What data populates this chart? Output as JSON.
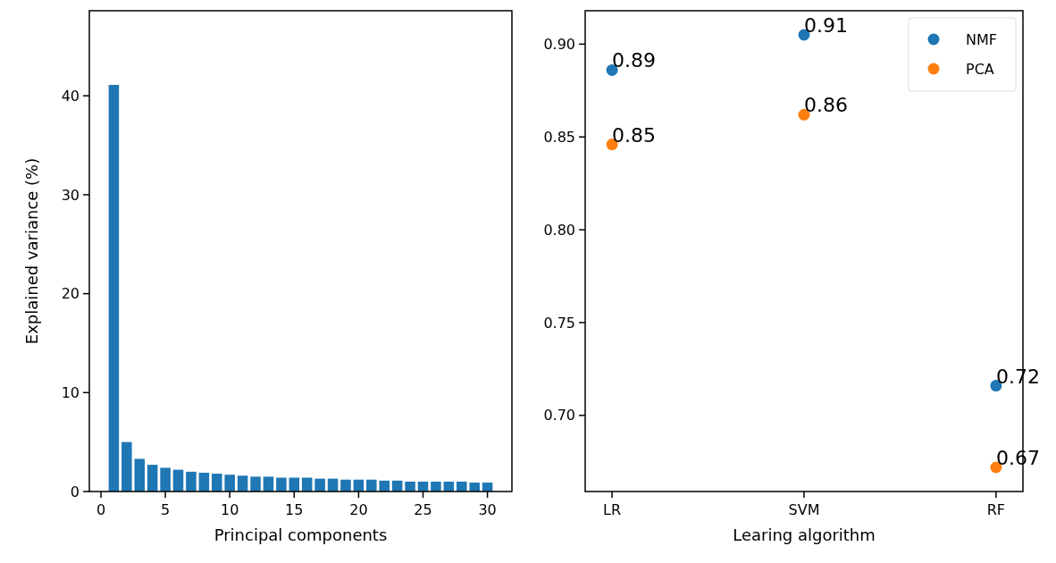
{
  "chart_data": [
    {
      "type": "bar",
      "xlabel": "Principal components",
      "ylabel": "Explained variance (%)",
      "x": [
        1,
        2,
        3,
        4,
        5,
        6,
        7,
        8,
        9,
        10,
        11,
        12,
        13,
        14,
        15,
        16,
        17,
        18,
        19,
        20,
        21,
        22,
        23,
        24,
        25,
        26,
        27,
        28,
        29,
        30
      ],
      "values": [
        41.1,
        5.0,
        3.3,
        2.7,
        2.4,
        2.2,
        2.0,
        1.9,
        1.8,
        1.7,
        1.6,
        1.5,
        1.5,
        1.4,
        1.4,
        1.4,
        1.3,
        1.3,
        1.2,
        1.2,
        1.2,
        1.1,
        1.1,
        1.0,
        1.0,
        1.0,
        1.0,
        1.0,
        0.9,
        0.9
      ],
      "color": "#1f77b4",
      "xlim": [
        -0.9,
        31.9
      ],
      "xticks": [
        0,
        5,
        10,
        15,
        20,
        25,
        30
      ],
      "ylim": [
        0,
        48.6
      ],
      "yticks": [
        0,
        10,
        20,
        30,
        40
      ],
      "grid": false
    },
    {
      "type": "scatter",
      "xlabel": "Learing algorithm",
      "categories": [
        "LR",
        "SVM",
        "RF"
      ],
      "series": [
        {
          "name": "NMF",
          "color": "#1f77b4",
          "values": [
            0.886,
            0.905,
            0.716
          ],
          "value_labels": [
            "0.89",
            "0.91",
            "0.72"
          ]
        },
        {
          "name": "PCA",
          "color": "#ff7f0e",
          "values": [
            0.846,
            0.862,
            0.672
          ],
          "value_labels": [
            "0.85",
            "0.86",
            "0.67"
          ]
        }
      ],
      "ylim": [
        0.659,
        0.918
      ],
      "yticks": [
        {
          "value": 0.7,
          "label": "0.70"
        },
        0.75,
        {
          "value": 0.8,
          "label": "0.80"
        },
        0.85,
        {
          "value": 0.9,
          "label": "0.90"
        }
      ],
      "legend": "top right",
      "marker": "circle",
      "grid": false
    }
  ]
}
